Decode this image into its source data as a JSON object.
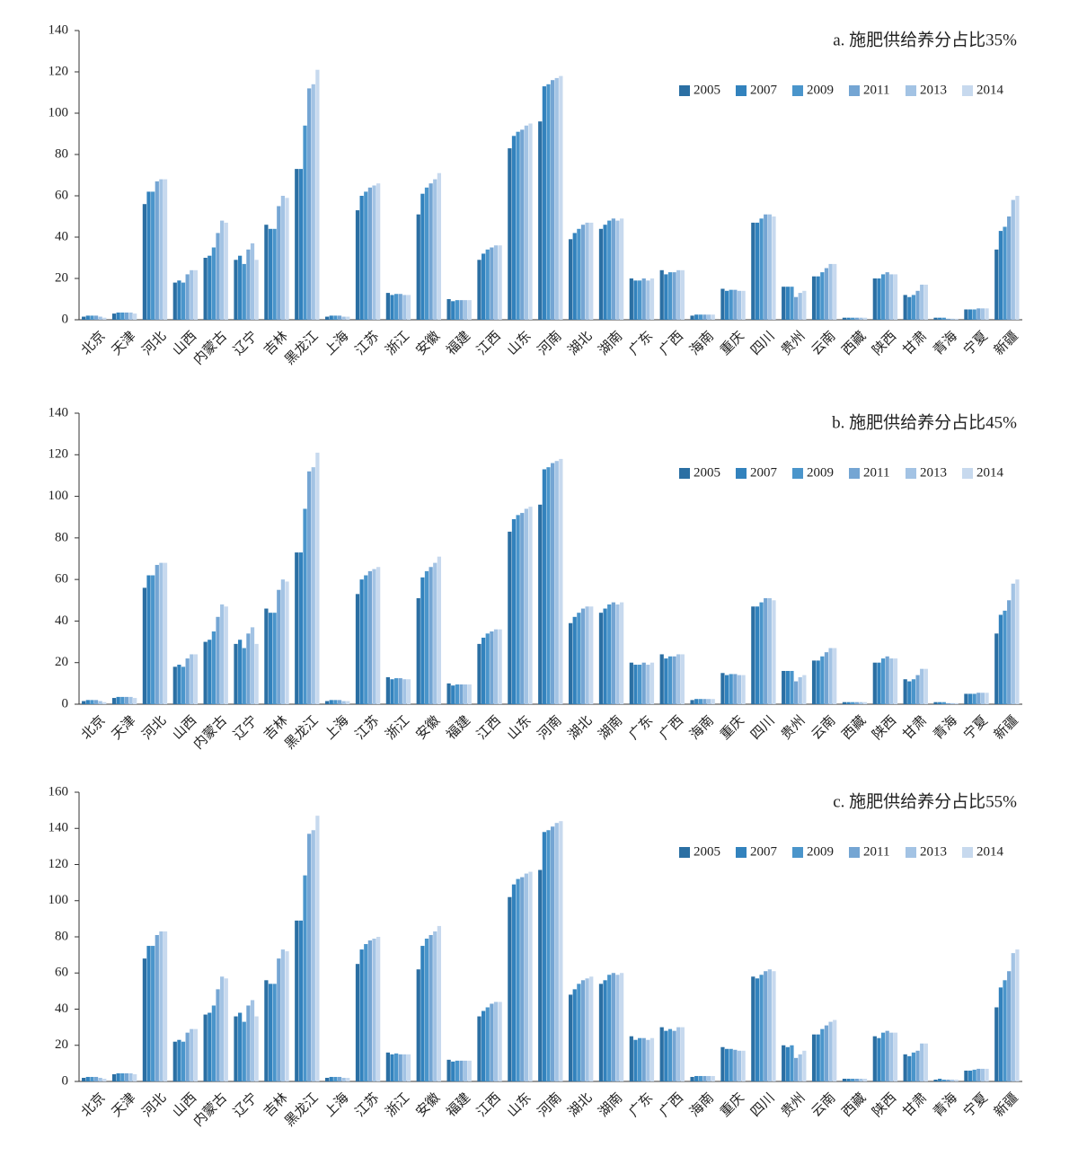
{
  "chart_data": [
    {
      "type": "bar",
      "title": "a. 施肥供给养分占比35%",
      "legend": "upper right",
      "categories": [
        "北京",
        "天津",
        "河北",
        "山西",
        "内蒙古",
        "辽宁",
        "吉林",
        "黑龙江",
        "上海",
        "江苏",
        "浙江",
        "安徽",
        "福建",
        "江西",
        "山东",
        "河南",
        "湖北",
        "湖南",
        "广东",
        "广西",
        "海南",
        "重庆",
        "四川",
        "贵州",
        "云南",
        "西藏",
        "陕西",
        "甘肃",
        "青海",
        "宁夏",
        "新疆"
      ],
      "ylim": [
        0,
        140
      ],
      "yticks": [
        0,
        20,
        40,
        60,
        80,
        100,
        120,
        140
      ],
      "series": [
        {
          "name": "2005",
          "color": "#2b6fa3",
          "values": [
            1.5,
            3,
            56,
            18,
            30,
            29,
            46,
            73,
            1.5,
            53,
            13,
            51,
            10,
            29,
            83,
            96,
            39,
            44,
            20,
            24,
            2,
            15,
            47,
            16,
            21,
            1,
            20,
            12,
            1,
            5,
            34
          ]
        },
        {
          "name": "2007",
          "color": "#3282bd",
          "values": [
            2,
            3.5,
            62,
            19,
            31,
            31,
            44,
            73,
            2,
            60,
            12,
            61,
            9,
            32,
            89,
            113,
            42,
            46,
            19,
            22,
            2.5,
            14,
            47,
            16,
            21,
            1,
            20,
            11,
            1,
            5,
            43
          ]
        },
        {
          "name": "2009",
          "color": "#4a95cb",
          "values": [
            2,
            3.5,
            62,
            18,
            35,
            27,
            44,
            94,
            2,
            62,
            12.5,
            64,
            9.5,
            34,
            91,
            114,
            44,
            48,
            19,
            23,
            2.5,
            14.5,
            49,
            16,
            23,
            1,
            22,
            12,
            1,
            5,
            45
          ]
        },
        {
          "name": "2011",
          "color": "#74a5d3",
          "values": [
            2,
            3.5,
            67,
            22,
            42,
            34,
            55,
            112,
            2,
            64,
            12.5,
            66,
            9.5,
            35,
            92,
            116,
            46,
            49,
            20,
            23,
            2.5,
            14.5,
            51,
            11,
            25,
            1,
            23,
            14,
            0.5,
            5.5,
            50
          ]
        },
        {
          "name": "2013",
          "color": "#a3c3e4",
          "values": [
            1.5,
            3.5,
            68,
            24,
            48,
            37,
            60,
            114,
            1.5,
            65,
            12,
            68,
            9.5,
            36,
            94,
            117,
            47,
            48,
            19,
            24,
            2.5,
            14,
            51,
            13,
            27,
            1,
            22,
            17,
            0.5,
            5.5,
            58
          ]
        },
        {
          "name": "2014",
          "color": "#c7d9ee",
          "values": [
            1,
            3,
            68,
            24,
            47,
            29,
            59,
            121,
            1.5,
            66,
            12,
            71,
            9.5,
            36,
            95,
            118,
            47,
            49,
            20,
            24,
            2.5,
            14,
            50,
            14,
            27,
            1,
            22,
            17,
            0.5,
            5.5,
            60
          ]
        }
      ]
    },
    {
      "type": "bar",
      "title": "b. 施肥供给养分占比45%",
      "legend": "upper right",
      "categories": [
        "北京",
        "天津",
        "河北",
        "山西",
        "内蒙古",
        "辽宁",
        "吉林",
        "黑龙江",
        "上海",
        "江苏",
        "浙江",
        "安徽",
        "福建",
        "江西",
        "山东",
        "河南",
        "湖北",
        "湖南",
        "广东",
        "广西",
        "海南",
        "重庆",
        "四川",
        "贵州",
        "云南",
        "西藏",
        "陕西",
        "甘肃",
        "青海",
        "宁夏",
        "新疆"
      ],
      "ylim": [
        0,
        140
      ],
      "yticks": [
        0,
        20,
        40,
        60,
        80,
        100,
        120,
        140
      ],
      "series": [
        {
          "name": "2005",
          "color": "#2b6fa3",
          "values": [
            1.5,
            3,
            56,
            18,
            30,
            29,
            46,
            73,
            1.5,
            53,
            13,
            51,
            10,
            29,
            83,
            96,
            39,
            44,
            20,
            24,
            2,
            15,
            47,
            16,
            21,
            1,
            20,
            12,
            1,
            5,
            34
          ]
        },
        {
          "name": "2007",
          "color": "#3282bd",
          "values": [
            2,
            3.5,
            62,
            19,
            31,
            31,
            44,
            73,
            2,
            60,
            12,
            61,
            9,
            32,
            89,
            113,
            42,
            46,
            19,
            22,
            2.5,
            14,
            47,
            16,
            21,
            1,
            20,
            11,
            1,
            5,
            43
          ]
        },
        {
          "name": "2009",
          "color": "#4a95cb",
          "values": [
            2,
            3.5,
            62,
            18,
            35,
            27,
            44,
            94,
            2,
            62,
            12.5,
            64,
            9.5,
            34,
            91,
            114,
            44,
            48,
            19,
            23,
            2.5,
            14.5,
            49,
            16,
            23,
            1,
            22,
            12,
            1,
            5,
            45
          ]
        },
        {
          "name": "2011",
          "color": "#74a5d3",
          "values": [
            2,
            3.5,
            67,
            22,
            42,
            34,
            55,
            112,
            2,
            64,
            12.5,
            66,
            9.5,
            35,
            92,
            116,
            46,
            49,
            20,
            23,
            2.5,
            14.5,
            51,
            11,
            25,
            1,
            23,
            14,
            0.5,
            5.5,
            50
          ]
        },
        {
          "name": "2013",
          "color": "#a3c3e4",
          "values": [
            1.5,
            3.5,
            68,
            24,
            48,
            37,
            60,
            114,
            1.5,
            65,
            12,
            68,
            9.5,
            36,
            94,
            117,
            47,
            48,
            19,
            24,
            2.5,
            14,
            51,
            13,
            27,
            1,
            22,
            17,
            0.5,
            5.5,
            58
          ]
        },
        {
          "name": "2014",
          "color": "#c7d9ee",
          "values": [
            1,
            3,
            68,
            24,
            47,
            29,
            59,
            121,
            1.5,
            66,
            12,
            71,
            9.5,
            36,
            95,
            118,
            47,
            49,
            20,
            24,
            2.5,
            14,
            50,
            14,
            27,
            1,
            22,
            17,
            0.5,
            5.5,
            60
          ]
        }
      ]
    },
    {
      "type": "bar",
      "title": "c. 施肥供给养分占比55%",
      "legend": "upper right",
      "categories": [
        "北京",
        "天津",
        "河北",
        "山西",
        "内蒙古",
        "辽宁",
        "吉林",
        "黑龙江",
        "上海",
        "江苏",
        "浙江",
        "安徽",
        "福建",
        "江西",
        "山东",
        "河南",
        "湖北",
        "湖南",
        "广东",
        "广西",
        "海南",
        "重庆",
        "四川",
        "贵州",
        "云南",
        "西藏",
        "陕西",
        "甘肃",
        "青海",
        "宁夏",
        "新疆"
      ],
      "ylim": [
        0,
        160
      ],
      "yticks": [
        0,
        20,
        40,
        60,
        80,
        100,
        120,
        140,
        160
      ],
      "series": [
        {
          "name": "2005",
          "color": "#2b6fa3",
          "values": [
            2,
            4,
            68,
            22,
            37,
            36,
            56,
            89,
            2,
            65,
            16,
            62,
            12,
            36,
            102,
            117,
            48,
            54,
            25,
            30,
            2.5,
            19,
            58,
            20,
            26,
            1.5,
            25,
            15,
            1,
            6,
            41
          ]
        },
        {
          "name": "2007",
          "color": "#3282bd",
          "values": [
            2.5,
            4.5,
            75,
            23,
            38,
            38,
            54,
            89,
            2.5,
            73,
            15,
            75,
            11,
            39,
            109,
            138,
            51,
            56,
            23,
            28,
            3,
            18,
            57,
            19,
            26,
            1.5,
            24,
            14,
            1.5,
            6,
            52
          ]
        },
        {
          "name": "2009",
          "color": "#4a95cb",
          "values": [
            2.5,
            4.5,
            75,
            22,
            42,
            33,
            54,
            114,
            2.5,
            76,
            15.5,
            79,
            11.5,
            41,
            112,
            139,
            54,
            59,
            24,
            29,
            3,
            18,
            59,
            20,
            29,
            1.5,
            27,
            16,
            1,
            6.5,
            56
          ]
        },
        {
          "name": "2011",
          "color": "#74a5d3",
          "values": [
            2.5,
            4.5,
            81,
            27,
            51,
            42,
            68,
            137,
            2.5,
            78,
            15,
            81,
            11.5,
            43,
            113,
            141,
            56,
            60,
            24,
            28,
            3,
            17.5,
            61,
            13,
            31,
            1.5,
            28,
            17,
            1,
            7,
            61
          ]
        },
        {
          "name": "2013",
          "color": "#a3c3e4",
          "values": [
            2,
            4.5,
            83,
            29,
            58,
            45,
            73,
            139,
            2,
            79,
            15,
            83,
            11.5,
            44,
            115,
            143,
            57,
            59,
            23,
            30,
            3,
            17,
            62,
            15,
            33,
            1.5,
            27,
            21,
            1,
            7,
            71
          ]
        },
        {
          "name": "2014",
          "color": "#c7d9ee",
          "values": [
            1.5,
            4,
            83,
            29,
            57,
            36,
            72,
            147,
            2,
            80,
            15,
            86,
            11.5,
            44,
            116,
            144,
            58,
            60,
            24,
            30,
            3,
            17,
            61,
            17,
            34,
            1.5,
            27,
            21,
            1,
            7,
            73
          ]
        }
      ]
    }
  ]
}
